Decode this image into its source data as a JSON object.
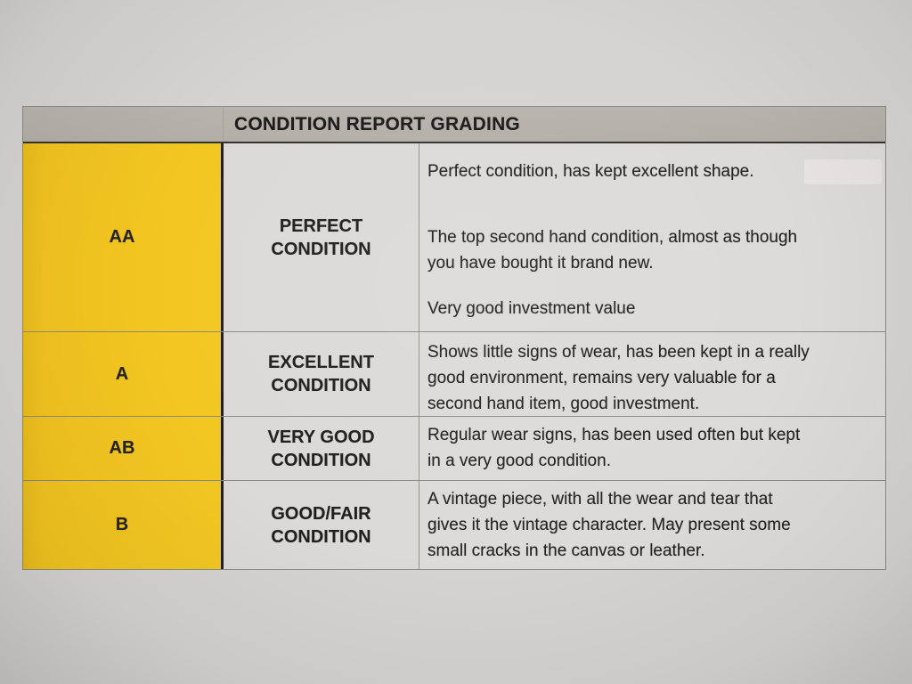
{
  "header": {
    "title": "CONDITION REPORT GRADING"
  },
  "table": {
    "rows": [
      {
        "code": "AA",
        "label": "PERFECT CONDITION",
        "paragraphs": [
          {
            "lines": [
              "Perfect condition, has kept excellent shape."
            ]
          },
          {
            "lines": [
              "The top second hand condition, almost as though",
              "you have bought it brand new."
            ]
          },
          {
            "lines": [
              "Very good investment value"
            ]
          }
        ]
      },
      {
        "code": "A",
        "label": "EXCELLENT CONDITION",
        "paragraphs": [
          {
            "lines": [
              "Shows little signs of wear, has been kept in a really",
              "good environment, remains very valuable for a",
              "second hand item, good investment."
            ]
          }
        ]
      },
      {
        "code": "AB",
        "label": "VERY GOOD CONDITION",
        "paragraphs": [
          {
            "lines": [
              "Regular wear signs, has been used often but kept",
              "in a very good condition."
            ]
          }
        ]
      },
      {
        "code": "B",
        "label": "GOOD/FAIR CONDITION",
        "paragraphs": [
          {
            "lines": [
              "A vintage piece, with all the wear and tear that",
              "gives it the vintage character. May present some",
              "small cracks in the canvas or leather."
            ]
          }
        ]
      }
    ]
  },
  "colors": {
    "grade_column_yellow": "#f2c41f",
    "header_gray": "#b5b1aa",
    "paper": "#d6d4d2",
    "cell_background": "#dcdad8",
    "text": "#232120"
  }
}
